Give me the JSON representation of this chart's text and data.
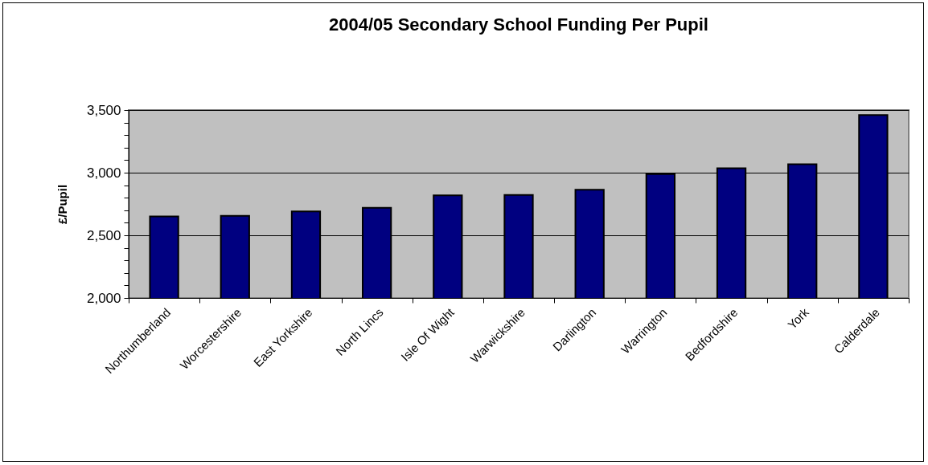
{
  "chart_data": {
    "type": "bar",
    "title": "2004/05 Secondary School Funding Per Pupil",
    "ylabel": "£/Pupil",
    "categories": [
      "Northumberland",
      "Worcestershire",
      "East Yorkshire",
      "North Lincs",
      "Isle Of Wight",
      "Warwickshire",
      "Darlington",
      "Warrington",
      "Bedfordshire",
      "York",
      "Calderdale"
    ],
    "values": [
      2650,
      2656,
      2690,
      2719,
      2819,
      2822,
      2864,
      2989,
      3036,
      3067,
      3460
    ],
    "color": "#000080",
    "ylim": [
      2000,
      3500
    ],
    "yticks": [
      {
        "value": 2000,
        "label": "2,000"
      },
      {
        "value": 2100,
        "label": null
      },
      {
        "value": 2200,
        "label": null
      },
      {
        "value": 2300,
        "label": null
      },
      {
        "value": 2400,
        "label": null
      },
      {
        "value": 2500,
        "label": "2,500"
      },
      {
        "value": 2600,
        "label": null
      },
      {
        "value": 2700,
        "label": null
      },
      {
        "value": 2800,
        "label": null
      },
      {
        "value": 2900,
        "label": null
      },
      {
        "value": 3000,
        "label": "3,000"
      },
      {
        "value": 3100,
        "label": null
      },
      {
        "value": 3200,
        "label": null
      },
      {
        "value": 3300,
        "label": null
      },
      {
        "value": 3400,
        "label": null
      },
      {
        "value": 3500,
        "label": "3,500"
      }
    ],
    "grid": "y"
  }
}
